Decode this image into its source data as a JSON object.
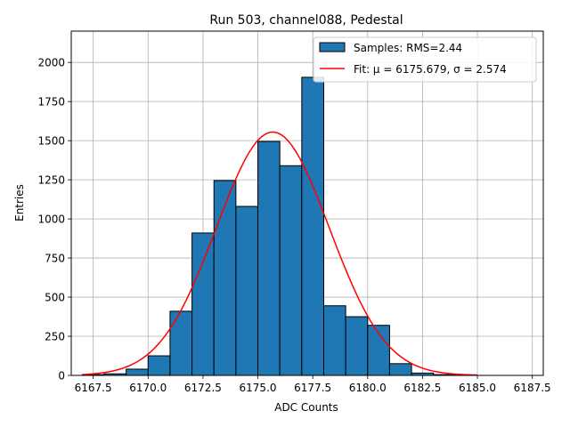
{
  "chart_data": {
    "type": "bar",
    "title": "Run 503, channel088, Pedestal",
    "xlabel": "ADC Counts",
    "ylabel": "Entries",
    "xlim": [
      6166.5,
      6188.0
    ],
    "ylim": [
      0,
      2200
    ],
    "grid": true,
    "xticks": [
      6167.5,
      6170.0,
      6172.5,
      6175.0,
      6177.5,
      6180.0,
      6182.5,
      6185.0,
      6187.5
    ],
    "xtick_labels": [
      "6167.5",
      "6170.0",
      "6172.5",
      "6175.0",
      "6177.5",
      "6180.0",
      "6182.5",
      "6185.0",
      "6187.5"
    ],
    "yticks": [
      0,
      250,
      500,
      750,
      1000,
      1250,
      1500,
      1750,
      2000
    ],
    "ytick_labels": [
      "0",
      "250",
      "500",
      "750",
      "1000",
      "1250",
      "1500",
      "1750",
      "2000"
    ],
    "histogram": {
      "name": "Samples: RMS=2.44",
      "color": "#1f77b4",
      "bin_edges": [
        6167.0,
        6168.0,
        6169.0,
        6170.0,
        6171.0,
        6172.0,
        6173.0,
        6174.0,
        6175.0,
        6176.0,
        6177.0,
        6178.0,
        6179.0,
        6180.0,
        6181.0,
        6182.0,
        6183.0,
        6184.0,
        6185.0,
        6186.0,
        6187.0
      ],
      "counts": [
        5,
        10,
        40,
        125,
        410,
        910,
        1245,
        1080,
        1495,
        1340,
        1905,
        445,
        375,
        320,
        75,
        15,
        5,
        0,
        0,
        0
      ]
    },
    "fit": {
      "name": "Fit: μ = 6175.679, σ = 2.574",
      "color": "#ff0000",
      "mu": 6175.679,
      "sigma": 2.574,
      "amplitude": 1555,
      "x_range": [
        6167.0,
        6185.0
      ]
    },
    "legend": {
      "location": "top-right",
      "entries": [
        "Samples: RMS=2.44",
        "Fit: μ = 6175.679, σ = 2.574"
      ]
    }
  }
}
